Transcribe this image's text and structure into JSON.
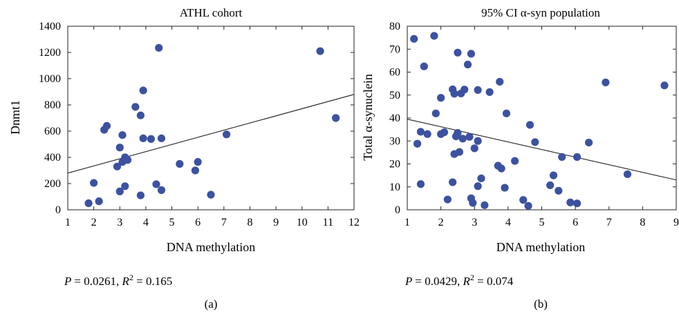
{
  "chart_data": [
    {
      "type": "scatter",
      "title": "ATHL cohort",
      "xlabel": "DNA methylation",
      "ylabel": "Dnmt1",
      "xlim": [
        1,
        12
      ],
      "ylim": [
        0,
        1400
      ],
      "xticks": [
        "1",
        "2",
        "3",
        "4",
        "5",
        "6",
        "7",
        "8",
        "9",
        "10",
        "11",
        "12"
      ],
      "yticks": [
        "0",
        "200",
        "400",
        "600",
        "800",
        "1000",
        "1200",
        "1400"
      ],
      "points": [
        [
          1.8,
          50
        ],
        [
          2.2,
          65
        ],
        [
          2.0,
          205
        ],
        [
          2.9,
          330
        ],
        [
          3.0,
          140
        ],
        [
          3.2,
          180
        ],
        [
          3.1,
          365
        ],
        [
          3.2,
          400
        ],
        [
          3.3,
          380
        ],
        [
          3.0,
          475
        ],
        [
          3.1,
          570
        ],
        [
          2.4,
          610
        ],
        [
          2.5,
          640
        ],
        [
          3.8,
          110
        ],
        [
          3.8,
          720
        ],
        [
          3.6,
          785
        ],
        [
          3.9,
          545
        ],
        [
          4.2,
          540
        ],
        [
          4.6,
          545
        ],
        [
          3.9,
          910
        ],
        [
          4.5,
          1235
        ],
        [
          4.4,
          195
        ],
        [
          4.6,
          150
        ],
        [
          5.3,
          350
        ],
        [
          5.9,
          300
        ],
        [
          6.0,
          365
        ],
        [
          6.5,
          115
        ],
        [
          7.1,
          575
        ],
        [
          10.7,
          1210
        ],
        [
          11.3,
          700
        ]
      ],
      "trend_line": [
        [
          1,
          280
        ],
        [
          12,
          880
        ]
      ],
      "stats": {
        "p_label": "P",
        "p_value": "= 0.0261, ",
        "r_label": "R",
        "r_exp": "2",
        "r_value": " = 0.165"
      },
      "panel_label": "(a)"
    },
    {
      "type": "scatter",
      "title": "95% CI α-syn population",
      "xlabel": "DNA methylation",
      "ylabel": "Total α-synuclein",
      "xlim": [
        1,
        9
      ],
      "ylim": [
        0,
        80
      ],
      "xticks": [
        "1",
        "2",
        "3",
        "4",
        "5",
        "6",
        "7",
        "8",
        "9"
      ],
      "yticks": [
        "0",
        "10",
        "20",
        "30",
        "40",
        "50",
        "60",
        "70",
        "80"
      ],
      "points": [
        [
          1.2,
          74.5
        ],
        [
          1.8,
          75.8
        ],
        [
          1.5,
          62.5
        ],
        [
          1.3,
          28.8
        ],
        [
          1.4,
          34.0
        ],
        [
          1.6,
          33.0
        ],
        [
          1.4,
          11.2
        ],
        [
          1.85,
          42.0
        ],
        [
          2.0,
          48.8
        ],
        [
          2.0,
          33.0
        ],
        [
          2.1,
          33.8
        ],
        [
          2.2,
          4.5
        ],
        [
          2.35,
          12.0
        ],
        [
          2.35,
          52.5
        ],
        [
          2.4,
          50.6
        ],
        [
          2.5,
          68.5
        ],
        [
          2.6,
          50.7
        ],
        [
          2.7,
          52.4
        ],
        [
          2.8,
          63.3
        ],
        [
          2.9,
          68.0
        ],
        [
          2.5,
          33.5
        ],
        [
          2.4,
          24.3
        ],
        [
          2.45,
          32.0
        ],
        [
          2.55,
          25.2
        ],
        [
          2.65,
          31.0
        ],
        [
          2.85,
          31.8
        ],
        [
          2.9,
          5.0
        ],
        [
          2.95,
          3.0
        ],
        [
          3.0,
          26.8
        ],
        [
          3.1,
          30.0
        ],
        [
          3.1,
          52.2
        ],
        [
          3.1,
          10.3
        ],
        [
          3.2,
          13.7
        ],
        [
          3.3,
          2.0
        ],
        [
          3.45,
          51.3
        ],
        [
          3.7,
          19.2
        ],
        [
          3.75,
          55.8
        ],
        [
          3.8,
          18.0
        ],
        [
          3.9,
          9.6
        ],
        [
          3.95,
          42.0
        ],
        [
          4.2,
          21.3
        ],
        [
          4.45,
          4.3
        ],
        [
          4.65,
          37.0
        ],
        [
          4.6,
          1.7
        ],
        [
          4.8,
          29.5
        ],
        [
          5.25,
          10.7
        ],
        [
          5.35,
          15.0
        ],
        [
          5.5,
          8.3
        ],
        [
          5.6,
          23.0
        ],
        [
          5.85,
          3.2
        ],
        [
          6.05,
          2.8
        ],
        [
          6.05,
          23.0
        ],
        [
          6.4,
          29.3
        ],
        [
          6.9,
          55.5
        ],
        [
          7.55,
          15.5
        ],
        [
          8.65,
          54.2
        ]
      ],
      "trend_line": [
        [
          1,
          39.5
        ],
        [
          9,
          13.0
        ]
      ],
      "stats": {
        "p_label": "P",
        "p_value": "= 0.0429, ",
        "r_label": "R",
        "r_exp": "2",
        "r_value": " = 0.074"
      },
      "panel_label": "(b)"
    }
  ]
}
